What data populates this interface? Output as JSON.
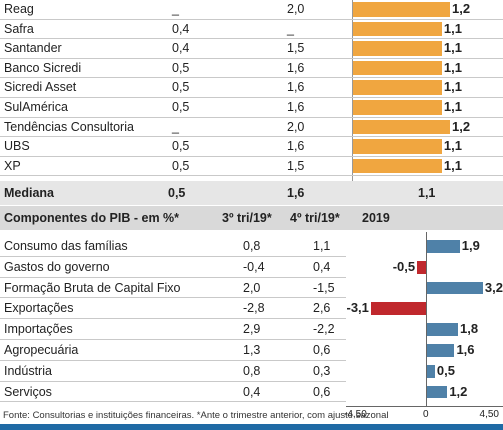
{
  "chart_data": [
    {
      "type": "table",
      "columns": [
        "",
        "",
        "",
        ""
      ],
      "rows": [
        {
          "name": "Reag",
          "c1": "_",
          "c2": "2,0",
          "bar": 1.2,
          "bar_label": "1,2"
        },
        {
          "name": "Safra",
          "c1": "0,4",
          "c2": "_",
          "bar": 1.1,
          "bar_label": "1,1"
        },
        {
          "name": "Santander",
          "c1": "0,4",
          "c2": "1,5",
          "bar": 1.1,
          "bar_label": "1,1"
        },
        {
          "name": "Banco Sicredi",
          "c1": "0,5",
          "c2": "1,6",
          "bar": 1.1,
          "bar_label": "1,1"
        },
        {
          "name": "Sicredi Asset",
          "c1": "0,5",
          "c2": "1,6",
          "bar": 1.1,
          "bar_label": "1,1"
        },
        {
          "name": "SulAmérica",
          "c1": "0,5",
          "c2": "1,6",
          "bar": 1.1,
          "bar_label": "1,1"
        },
        {
          "name": "Tendências Consultoria",
          "c1": "_",
          "c2": "2,0",
          "bar": 1.2,
          "bar_label": "1,2"
        },
        {
          "name": "UBS",
          "c1": "0,5",
          "c2": "1,6",
          "bar": 1.1,
          "bar_label": "1,1"
        },
        {
          "name": "XP",
          "c1": "0,5",
          "c2": "1,5",
          "bar": 1.1,
          "bar_label": "1,1"
        }
      ],
      "median": {
        "label": "Mediana",
        "c1": "0,5",
        "c2": "1,6",
        "c3": "1,1"
      },
      "bar_color": "#f0a640"
    },
    {
      "type": "bar",
      "title": "Componentes do PIB - em %*",
      "column_headers": [
        "3º tri/19*",
        "4º tri/19*",
        "2019"
      ],
      "categories": [
        "Consumo das famílias",
        "Gastos do governo",
        "Formação Bruta de Capital Fixo",
        "Exportações",
        "Importações",
        "Agropecuária",
        "Indústria",
        "Serviços"
      ],
      "q3": [
        "0,8",
        "-0,4",
        "2,0",
        "-2,8",
        "2,9",
        "1,3",
        "0,8",
        "0,4"
      ],
      "q4": [
        "1,1",
        "0,4",
        "-1,5",
        "2,6",
        "-2,2",
        "0,6",
        "0,3",
        "0,6"
      ],
      "values": [
        1.9,
        -0.5,
        3.2,
        -3.1,
        1.8,
        1.6,
        0.5,
        1.2
      ],
      "value_labels": [
        "1,9",
        "-0,5",
        "3,2",
        "-3,1",
        "1,8",
        "1,6",
        "0,5",
        "1,2"
      ],
      "xlim": [
        -4.5,
        4.5
      ],
      "xticks": [
        "-4,50",
        "0",
        "4,50"
      ],
      "positive_color": "#4f81a8",
      "negative_color": "#c0282d"
    }
  ],
  "footer": {
    "source": "Fonte: Consultorias e instituições financeiras. *Ante o trimestre anterior, com ajuste sazonal"
  }
}
